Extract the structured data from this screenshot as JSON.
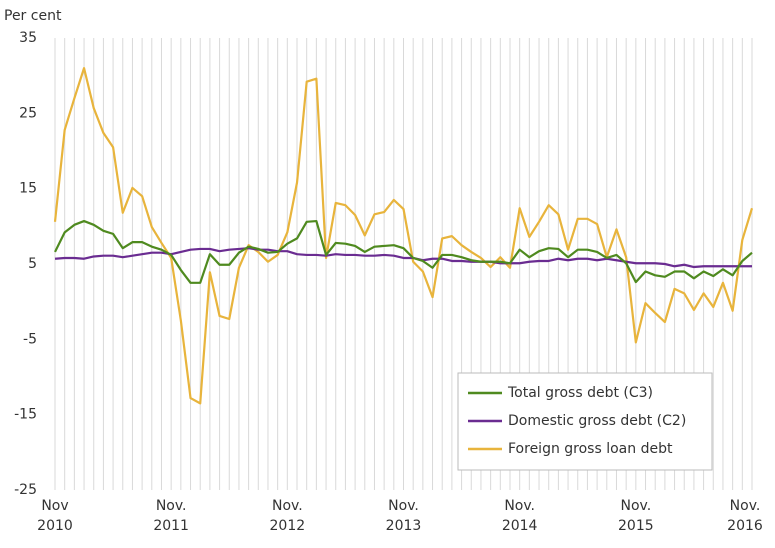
{
  "chart_data": {
    "type": "line",
    "y_label": "Per cent",
    "categories": [
      "Nov\n2010",
      null,
      null,
      null,
      null,
      null,
      null,
      null,
      null,
      null,
      null,
      null,
      "Nov.\n2011",
      null,
      null,
      null,
      null,
      null,
      null,
      null,
      null,
      null,
      null,
      null,
      "Nov.\n2012",
      null,
      null,
      null,
      null,
      null,
      null,
      null,
      null,
      null,
      null,
      null,
      "Nov.\n2013",
      null,
      null,
      null,
      null,
      null,
      null,
      null,
      null,
      null,
      null,
      null,
      "Nov.\n2014",
      null,
      null,
      null,
      null,
      null,
      null,
      null,
      null,
      null,
      null,
      null,
      "Nov.\n2015",
      null,
      null,
      null,
      null,
      null,
      null,
      null,
      null,
      null,
      null,
      null,
      "Nov.\n2016"
    ],
    "series": [
      {
        "name": "Total gross debt (C3)",
        "color": "#4f8a1f",
        "values": [
          6.6,
          9.2,
          10.2,
          10.7,
          10.2,
          9.4,
          9,
          7.1,
          7.9,
          7.9,
          7.3,
          6.9,
          6.2,
          4.2,
          2.5,
          2.5,
          6.3,
          4.9,
          4.9,
          6.5,
          7.3,
          7,
          6.5,
          6.6,
          7.7,
          8.4,
          10.6,
          10.7,
          6.2,
          7.8,
          7.7,
          7.4,
          6.6,
          7.3,
          7.4,
          7.5,
          7.1,
          5.8,
          5.4,
          4.5,
          6.2,
          6.2,
          5.9,
          5.5,
          5.3,
          5.3,
          5.3,
          5.1,
          6.9,
          5.9,
          6.7,
          7.1,
          7,
          5.9,
          6.9,
          6.9,
          6.6,
          5.8,
          6.2,
          5.1,
          2.6,
          4,
          3.5,
          3.3,
          4,
          4,
          3.1,
          4,
          3.4,
          4.3,
          3.5,
          5.4,
          6.5
        ]
      },
      {
        "name": "Domestic gross debt (C2)",
        "color": "#6a2c91",
        "values": [
          5.7,
          5.8,
          5.8,
          5.7,
          6,
          6.1,
          6.1,
          5.9,
          6.1,
          6.3,
          6.5,
          6.5,
          6.3,
          6.6,
          6.9,
          7,
          7,
          6.7,
          6.9,
          7,
          7.1,
          6.9,
          6.9,
          6.7,
          6.7,
          6.3,
          6.2,
          6.2,
          6.1,
          6.3,
          6.2,
          6.2,
          6.1,
          6.1,
          6.2,
          6.1,
          5.8,
          5.8,
          5.5,
          5.7,
          5.7,
          5.4,
          5.4,
          5.3,
          5.3,
          5.3,
          5.1,
          5.1,
          5.1,
          5.3,
          5.4,
          5.4,
          5.7,
          5.5,
          5.7,
          5.7,
          5.5,
          5.7,
          5.5,
          5.3,
          5.1,
          5.1,
          5.1,
          5,
          4.7,
          4.9,
          4.6,
          4.7,
          4.7,
          4.7,
          4.7,
          4.7,
          4.7
        ]
      },
      {
        "name": "Foreign gross loan debt",
        "color": "#e8b43c",
        "values": [
          10.6,
          22.8,
          27,
          31,
          25.7,
          22.4,
          20.5,
          11.8,
          15.1,
          14,
          9.9,
          7.8,
          5.8,
          -2.5,
          -12.8,
          -13.5,
          3.9,
          -1.9,
          -2.3,
          4.5,
          7.5,
          6.6,
          5.3,
          6.2,
          9.2,
          15.8,
          29.2,
          29.6,
          5.8,
          13.1,
          12.8,
          11.5,
          8.8,
          11.6,
          11.9,
          13.5,
          12.3,
          5.3,
          4,
          0.6,
          8.4,
          8.7,
          7.5,
          6.6,
          5.8,
          4.6,
          5.9,
          4.5,
          12.4,
          8.6,
          10.6,
          12.8,
          11.6,
          6.9,
          11,
          11,
          10.3,
          5.9,
          9.6,
          5.9,
          -5.4,
          -0.2,
          -1.5,
          -2.7,
          1.7,
          1.1,
          -1.1,
          1.1,
          -0.7,
          2.5,
          -1.2,
          8.2,
          12.4
        ]
      }
    ],
    "ylim": [
      -25,
      35
    ],
    "yticks": [
      35,
      25,
      15,
      5,
      -5,
      -15,
      -25
    ],
    "grid": true,
    "legend": "bottom-right"
  }
}
